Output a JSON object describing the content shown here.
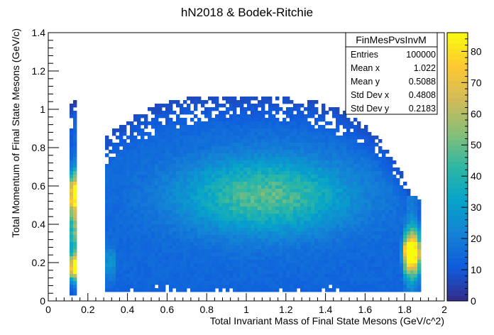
{
  "chart_data": {
    "type": "heatmap",
    "title": "hN2018 & Bodek-Ritchie",
    "xlabel": "Total Invariant Mass of Final State Mesons (GeV/c^2)",
    "ylabel": "Total Momentum of Final State Mesons (GeV/c)",
    "xlim": [
      0,
      2
    ],
    "ylim": [
      0,
      1.4
    ],
    "zlim": [
      0,
      86
    ],
    "x_ticks": [
      "0",
      "0.2",
      "0.4",
      "0.6",
      "0.8",
      "1",
      "1.2",
      "1.4",
      "1.6",
      "1.8",
      "2"
    ],
    "y_ticks": [
      "0",
      "0.2",
      "0.4",
      "0.6",
      "0.8",
      "1",
      "1.2",
      "1.4"
    ],
    "z_ticks": [
      "0",
      "10",
      "20",
      "30",
      "40",
      "50",
      "60",
      "70",
      "80"
    ],
    "grid": false,
    "palette": [
      "#352a87",
      "#0f5cdd",
      "#1481d6",
      "#06a4ca",
      "#2eb7a4",
      "#87bf77",
      "#d1bb59",
      "#fec832",
      "#f9fb0e"
    ],
    "regions": [
      {
        "name": "pion band",
        "x": [
          0.11,
          0.15
        ],
        "y": [
          0.03,
          1.04
        ],
        "peak_y": [
          0.17,
          0.55
        ],
        "peak_value": 85
      },
      {
        "name": "main continuum",
        "x": [
          0.28,
          1.88
        ],
        "y": [
          0.04,
          1.05
        ],
        "peak_x": 1.1,
        "peak_y": 0.55,
        "peak_value": 50
      },
      {
        "name": "high-mass edge",
        "x": [
          1.78,
          1.88
        ],
        "y": [
          0.05,
          0.55
        ],
        "peak_y": 0.25,
        "peak_value": 85
      }
    ],
    "stats": {
      "name": "FinMesPvsInvM",
      "rows": [
        {
          "label": "Entries",
          "value": "100000"
        },
        {
          "label": "Mean x",
          "value": "1.022"
        },
        {
          "label": "Mean y",
          "value": "0.5088"
        },
        {
          "label": "Std Dev x",
          "value": "0.4808"
        },
        {
          "label": "Std Dev y",
          "value": "0.2183"
        }
      ]
    }
  }
}
